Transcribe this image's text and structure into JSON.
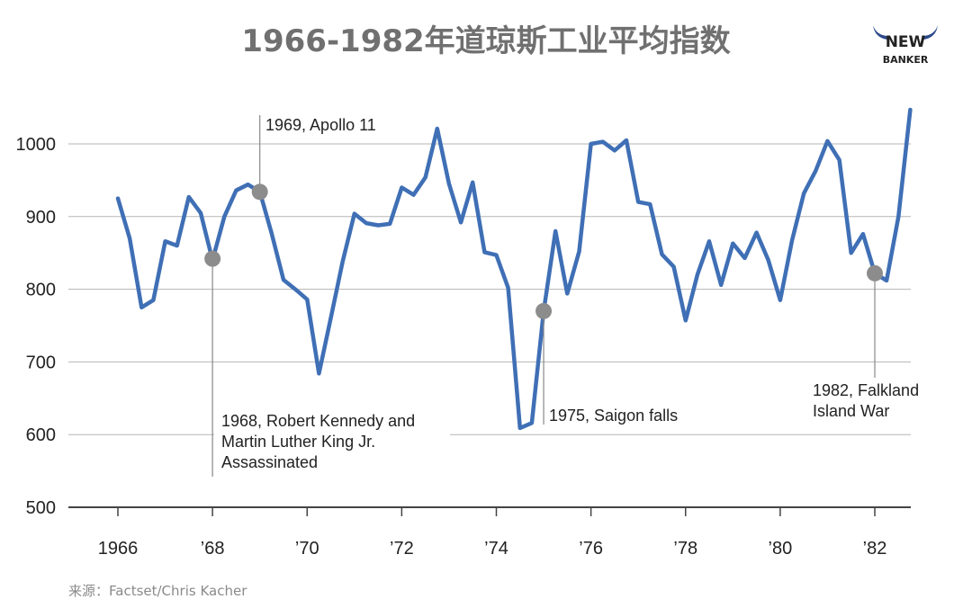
{
  "title": "1966-1982年道琼斯工业平均指数",
  "logo": {
    "line1": "NEW",
    "line2": "BANKER",
    "icon": "bull-horns-icon",
    "color": "#2d4a8a"
  },
  "source": "来源：Factset/Chris Kacher",
  "colors": {
    "line": "#3f6fb5",
    "marker": "#8c8c8c",
    "grid": "#b5b5b5",
    "axis": "#444444"
  },
  "chart_data": {
    "type": "line",
    "title": "1966-1982年道琼斯工业平均指数",
    "xlabel": "",
    "ylabel": "",
    "xlim": [
      1965.0,
      1983.0
    ],
    "ylim": [
      500,
      1060
    ],
    "grid": true,
    "y_ticks": [
      500,
      600,
      700,
      800,
      900,
      1000
    ],
    "y_tick_labels": [
      "500",
      "600",
      "700",
      "800",
      "900",
      "1000"
    ],
    "x_ticks": [
      1966,
      1968,
      1970,
      1972,
      1974,
      1976,
      1978,
      1980,
      1982
    ],
    "x_tick_labels": [
      "1966",
      "’68",
      "’70",
      "’72",
      "’74",
      "’76",
      "’78",
      "’80",
      "’82"
    ],
    "series": [
      {
        "x": [
          1966.0,
          1966.25,
          1966.5,
          1966.75,
          1967.0,
          1967.25,
          1967.5,
          1967.75,
          1968.0,
          1968.25,
          1968.5,
          1968.75,
          1969.0,
          1969.25,
          1969.5,
          1969.75,
          1970.0,
          1970.25,
          1970.5,
          1970.75,
          1971.0,
          1971.25,
          1971.5,
          1971.75,
          1972.0,
          1972.25,
          1972.5,
          1972.75,
          1973.0,
          1973.25,
          1973.5,
          1973.75,
          1974.0,
          1974.25,
          1974.5,
          1974.75,
          1975.0,
          1975.25,
          1975.5,
          1975.75,
          1976.0,
          1976.25,
          1976.5,
          1976.75,
          1977.0,
          1977.25,
          1977.5,
          1977.75,
          1978.0,
          1978.25,
          1978.5,
          1978.75,
          1979.0,
          1979.25,
          1979.5,
          1979.75,
          1980.0,
          1980.25,
          1980.5,
          1980.75,
          1981.0,
          1981.25,
          1981.5,
          1981.75,
          1982.0,
          1982.25,
          1982.5,
          1982.75
        ],
        "values": [
          925,
          870,
          775,
          785,
          866,
          860,
          927,
          905,
          840,
          900,
          936,
          944,
          934,
          877,
          813,
          800,
          786,
          684,
          760,
          838,
          904,
          891,
          888,
          890,
          940,
          930,
          954,
          1021,
          945,
          892,
          947,
          851,
          847,
          802,
          609,
          616,
          770,
          880,
          794,
          852,
          1000,
          1003,
          991,
          1005,
          920,
          917,
          848,
          831,
          757,
          820,
          866,
          806,
          863,
          843,
          878,
          840,
          785,
          867,
          932,
          963,
          1004,
          978,
          850,
          876,
          822,
          812,
          900,
          1047
        ]
      }
    ],
    "annotations": [
      {
        "x": 1969.0,
        "y": 934,
        "text_lines": [
          "1969, Apollo 11"
        ]
      },
      {
        "x": 1968.0,
        "y": 842,
        "text_lines": [
          "1968, Robert Kennedy and",
          "Martin Luther King Jr.",
          "Assassinated"
        ]
      },
      {
        "x": 1975.0,
        "y": 770,
        "text_lines": [
          "1975, Saigon falls"
        ]
      },
      {
        "x": 1982.0,
        "y": 822,
        "text_lines": [
          "1982, Falkland",
          "Island War"
        ]
      }
    ]
  }
}
